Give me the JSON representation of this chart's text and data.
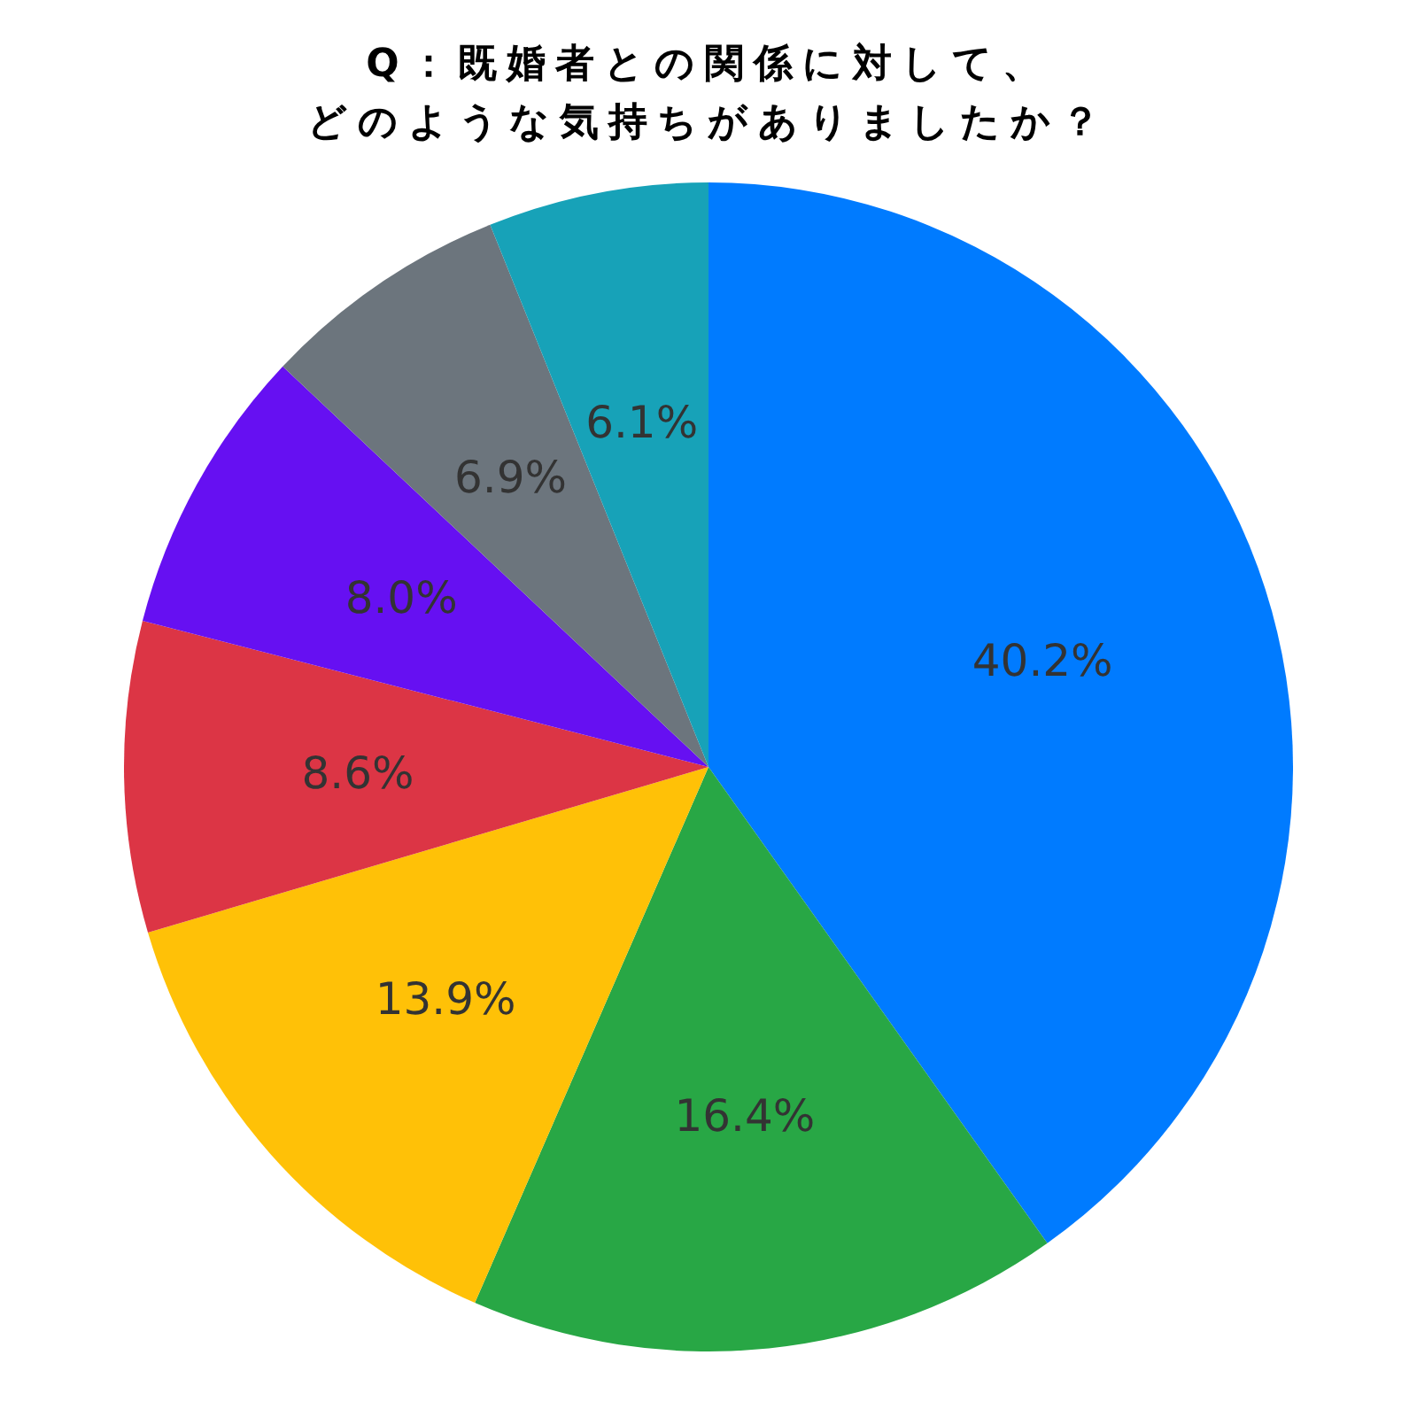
{
  "chart_data": {
    "type": "pie",
    "title": "Q：既婚者との関係に対して、どのような気持ちがありましたか？",
    "categories": [
      null,
      null,
      null,
      null,
      null,
      null,
      null
    ],
    "values": [
      40.2,
      16.4,
      13.9,
      8.6,
      8.0,
      6.9,
      6.1
    ],
    "value_labels": [
      "40.2%",
      "16.4%",
      "13.9%",
      "8.6%",
      "8.0%",
      "6.9%",
      "6.1%"
    ],
    "colors": [
      "#007bff",
      "#28a745",
      "#ffc107",
      "#dc3545",
      "#6610f2",
      "#6c757d",
      "#17a2b8"
    ]
  }
}
